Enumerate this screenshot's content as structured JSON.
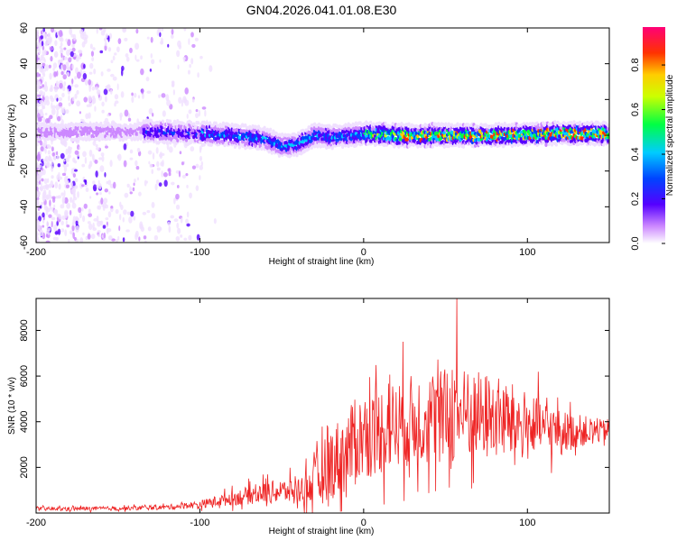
{
  "title": "GN04.2026.041.01.08.E30",
  "colors": {
    "snr_line": "#ee2222",
    "frame": "#000000"
  },
  "chart_data": [
    {
      "type": "heatmap",
      "name": "spectrogram",
      "xlabel": "Height of straight line (km)",
      "ylabel": "Frequency (Hz)",
      "xlim": [
        -200,
        150
      ],
      "ylim": [
        -60,
        60
      ],
      "xticks": [
        -200,
        -100,
        0,
        100
      ],
      "yticks": [
        -60,
        -40,
        -20,
        0,
        20,
        40,
        60
      ],
      "ridge": {
        "x": [
          -135,
          -120,
          -100,
          -80,
          -60,
          -50,
          -40,
          -30,
          -20,
          -10,
          0,
          20,
          50,
          80,
          110,
          150
        ],
        "y": [
          2,
          2,
          1,
          0,
          -2,
          -6,
          -5,
          0,
          -1,
          0,
          1,
          0,
          0,
          0,
          1,
          1
        ]
      },
      "colorbar": {
        "label": "Normalized spectral amplitude",
        "range": [
          0.0,
          0.97
        ],
        "ticks": [
          0.0,
          0.2,
          0.4,
          0.6,
          0.8
        ],
        "tick_labels": [
          "0.0",
          "0.2",
          "0.4",
          "0.6",
          "0.8"
        ]
      }
    },
    {
      "type": "line",
      "name": "snr",
      "xlabel": "Height of straight line (km)",
      "ylabel": "SNR (10 * v/v)",
      "xlim": [
        -200,
        150
      ],
      "ylim": [
        0,
        9400
      ],
      "xticks": [
        -200,
        -100,
        0,
        100
      ],
      "yticks": [
        2000,
        4000,
        6000,
        8000
      ],
      "envelope": {
        "x": [
          -200,
          -150,
          -120,
          -100,
          -80,
          -60,
          -40,
          -30,
          -20,
          -10,
          0,
          20,
          40,
          60,
          80,
          100,
          120,
          150
        ],
        "mean": [
          180,
          200,
          260,
          380,
          650,
          900,
          1000,
          1300,
          2200,
          2700,
          3400,
          3900,
          4200,
          4300,
          4200,
          3800,
          3600,
          3600
        ],
        "spread": [
          120,
          130,
          150,
          230,
          450,
          700,
          800,
          1500,
          2300,
          2600,
          2800,
          2800,
          3000,
          3000,
          2700,
          2200,
          1300,
          600
        ]
      },
      "peak": {
        "x": 57,
        "y": 9400
      }
    }
  ]
}
